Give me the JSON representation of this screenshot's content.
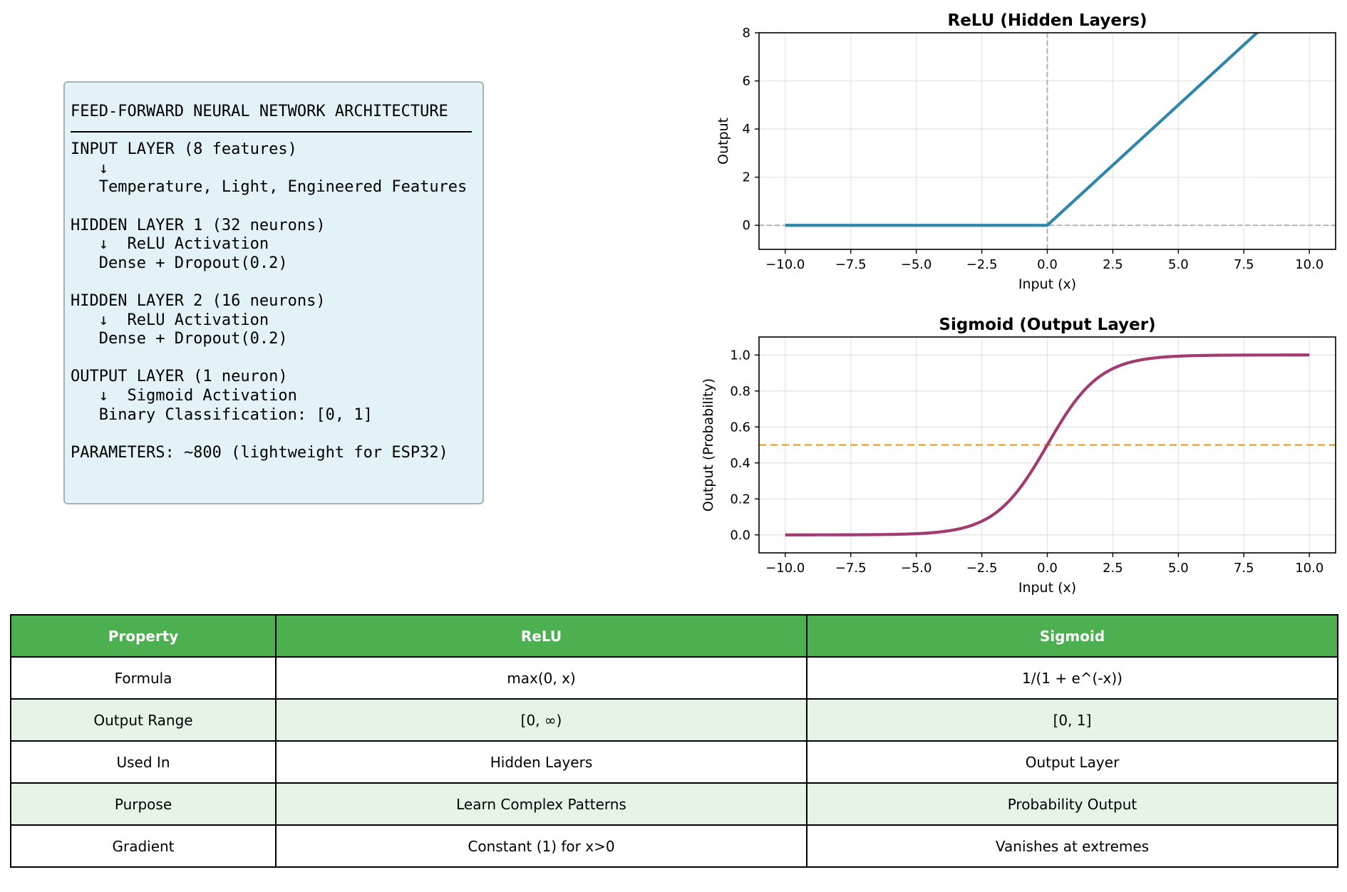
{
  "architecture": {
    "title": "FEED-FORWARD NEURAL NETWORK ARCHITECTURE",
    "lines": [
      "INPUT LAYER (8 features)",
      "   ↓",
      "   Temperature, Light, Engineered Features",
      "",
      "HIDDEN LAYER 1 (32 neurons)",
      "   ↓  ReLU Activation",
      "   Dense + Dropout(0.2)",
      "",
      "HIDDEN LAYER 2 (16 neurons)",
      "   ↓  ReLU Activation",
      "   Dense + Dropout(0.2)",
      "",
      "OUTPUT LAYER (1 neuron)",
      "   ↓  Sigmoid Activation",
      "   Binary Classification: [0, 1]",
      "",
      "PARAMETERS: ~800 (lightweight for ESP32)"
    ]
  },
  "chart_data": [
    {
      "type": "line",
      "title": "ReLU (Hidden Layers)",
      "xlabel": "Input (x)",
      "ylabel": "Output",
      "xlim": [
        -11,
        11
      ],
      "ylim": [
        -1,
        8
      ],
      "xticks": [
        "−10.0",
        "−7.5",
        "−5.0",
        "−2.5",
        "0.0",
        "2.5",
        "5.0",
        "7.5",
        "10.0"
      ],
      "xtick_values": [
        -10,
        -7.5,
        -5,
        -2.5,
        0,
        2.5,
        5,
        7.5,
        10
      ],
      "yticks": [
        "0",
        "2",
        "4",
        "6",
        "8"
      ],
      "ytick_values": [
        0,
        2,
        4,
        6,
        8
      ],
      "grid": true,
      "reference_lines": [
        {
          "axis": "x",
          "value": 0,
          "style": "dashed",
          "color": "#a8a8a8"
        },
        {
          "axis": "y",
          "value": 0,
          "style": "dashed",
          "color": "#a8a8a8"
        }
      ],
      "series": [
        {
          "function": "relu",
          "x": [
            -10,
            0,
            10
          ],
          "y": [
            0,
            0,
            10
          ],
          "color": "#2e86ab"
        }
      ]
    },
    {
      "type": "line",
      "title": "Sigmoid (Output Layer)",
      "xlabel": "Input (x)",
      "ylabel": "Output (Probability)",
      "xlim": [
        -11,
        11
      ],
      "ylim": [
        -0.1,
        1.1
      ],
      "xticks": [
        "−10.0",
        "−7.5",
        "−5.0",
        "−2.5",
        "0.0",
        "2.5",
        "5.0",
        "7.5",
        "10.0"
      ],
      "xtick_values": [
        -10,
        -7.5,
        -5,
        -2.5,
        0,
        2.5,
        5,
        7.5,
        10
      ],
      "yticks": [
        "0.0",
        "0.2",
        "0.4",
        "0.6",
        "0.8",
        "1.0"
      ],
      "ytick_values": [
        0,
        0.2,
        0.4,
        0.6,
        0.8,
        1.0
      ],
      "grid": true,
      "reference_lines": [
        {
          "axis": "y",
          "value": 0.5,
          "style": "dashed",
          "color": "#f5a623"
        }
      ],
      "series": [
        {
          "function": "sigmoid",
          "x_range": [
            -10,
            10
          ],
          "color": "#a23b72"
        }
      ]
    }
  ],
  "table": {
    "headers": [
      "Property",
      "ReLU",
      "Sigmoid"
    ],
    "header_color": "#4caf50",
    "alt_row_color": "#e6f4e8",
    "rows": [
      [
        "Formula",
        "max(0, x)",
        "1/(1 + e^(-x))"
      ],
      [
        "Output Range",
        "[0, ∞)",
        "[0, 1]"
      ],
      [
        "Used In",
        "Hidden Layers",
        "Output Layer"
      ],
      [
        "Purpose",
        "Learn Complex Patterns",
        "Probability Output"
      ],
      [
        "Gradient",
        "Constant (1) for x>0",
        "Vanishes at extremes"
      ]
    ]
  }
}
